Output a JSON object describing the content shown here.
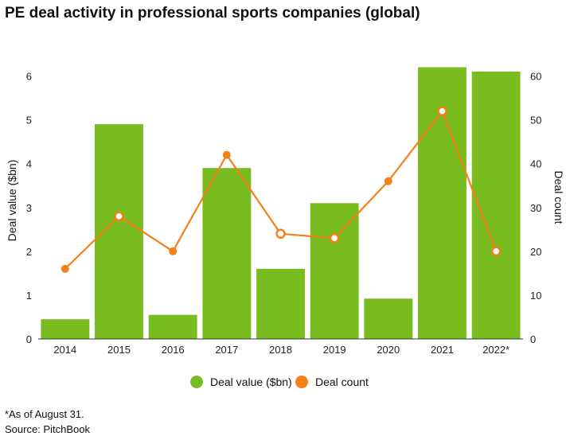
{
  "chart_data": {
    "type": "bar",
    "title": "PE deal activity in professional sports companies (global)",
    "categories": [
      "2014",
      "2015",
      "2016",
      "2017",
      "2018",
      "2019",
      "2020",
      "2021",
      "2022*"
    ],
    "series": [
      {
        "name": "Deal value ($bn)",
        "type": "bar",
        "axis": "left",
        "values": [
          0.45,
          4.9,
          0.55,
          3.9,
          1.6,
          3.1,
          0.92,
          6.2,
          6.1
        ]
      },
      {
        "name": "Deal count",
        "type": "line",
        "axis": "right",
        "values": [
          16,
          28,
          20,
          42,
          24,
          23,
          36,
          52,
          20
        ]
      }
    ],
    "ylabel": "Deal value ($bn)",
    "ylabel_right": "Deal count",
    "ylim": [
      0,
      6.3
    ],
    "ylim_right": [
      0,
      63
    ],
    "yticks": [
      "0",
      "1",
      "2",
      "3",
      "4",
      "5",
      "6"
    ],
    "yticks_right": [
      "0",
      "10",
      "20",
      "30",
      "40",
      "50",
      "60"
    ],
    "grid": false,
    "legend_position": "bottom",
    "colors": {
      "bar": "#79bc1f",
      "line": "#f4801a"
    }
  },
  "footnotes": {
    "note": "*As of August 31.",
    "source": "Source: PitchBook"
  }
}
